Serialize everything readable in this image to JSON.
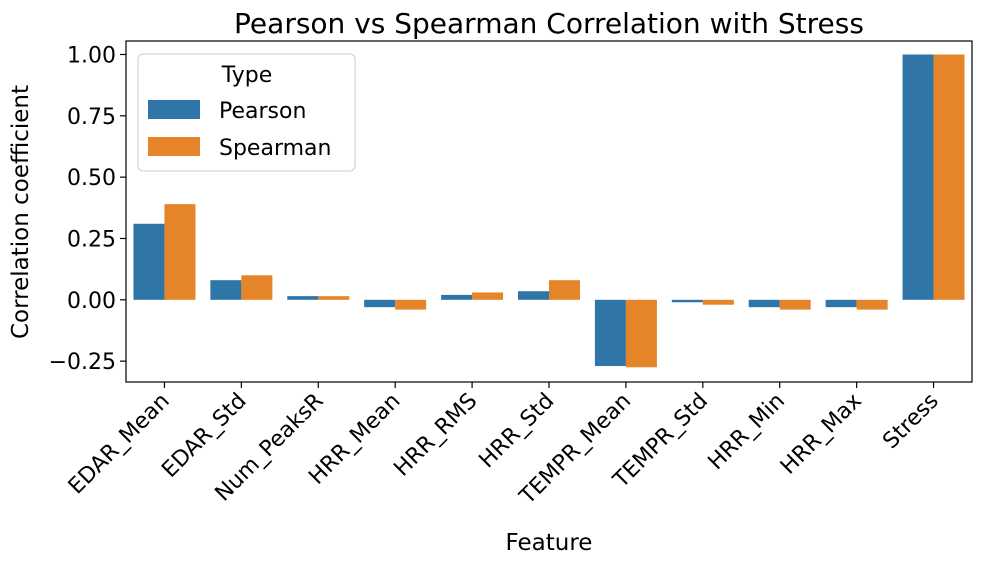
{
  "chart_data": {
    "type": "bar",
    "title": "Pearson vs Spearman Correlation with Stress",
    "xlabel": "Feature",
    "ylabel": "Correlation coefficient",
    "categories": [
      "EDAR_Mean",
      "EDAR_Std",
      "Num_PeaksR",
      "HRR_Mean",
      "HRR_RMS",
      "HRR_Std",
      "TEMPR_Mean",
      "TEMPR_Std",
      "HRR_Min",
      "HRR_Max",
      "Stress"
    ],
    "series": [
      {
        "name": "Pearson",
        "color": "#2f75a8",
        "values": [
          0.31,
          0.08,
          0.015,
          -0.03,
          0.02,
          0.035,
          -0.27,
          -0.01,
          -0.03,
          -0.03,
          1.0
        ]
      },
      {
        "name": "Spearman",
        "color": "#e6842a",
        "values": [
          0.39,
          0.1,
          0.015,
          -0.04,
          0.03,
          0.08,
          -0.275,
          -0.02,
          -0.04,
          -0.04,
          1.0
        ]
      }
    ],
    "yticks": [
      -0.25,
      0.0,
      0.25,
      0.5,
      0.75,
      1.0
    ],
    "ytick_labels": [
      "−0.25",
      "0.00",
      "0.25",
      "0.50",
      "0.75",
      "1.00"
    ],
    "ylim": [
      -0.335,
      1.055
    ],
    "legend": {
      "title": "Type",
      "position": "top-left"
    },
    "grid": false
  }
}
